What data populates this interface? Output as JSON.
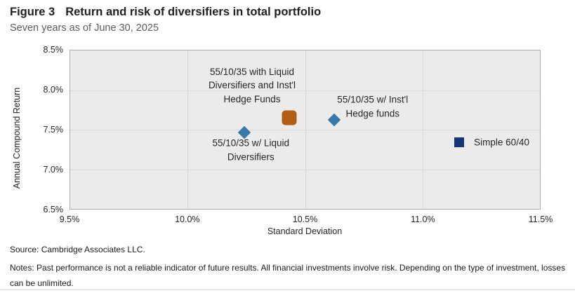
{
  "header": {
    "figure_label": "Figure 3",
    "title": "Return and risk of diversifiers in total portfolio",
    "subtitle": "Seven years as of June 30, 2025"
  },
  "chart_data": {
    "type": "scatter",
    "title": "Return and risk of diversifiers in total portfolio",
    "subtitle": "Seven years as of June 30, 2025",
    "xlabel": "Standard Deviation",
    "ylabel": "Annual Compound Return",
    "xlim": [
      9.5,
      11.5
    ],
    "ylim": [
      6.5,
      8.5
    ],
    "x_ticks": [
      "9.5%",
      "10.0%",
      "10.5%",
      "11.0%",
      "11.5%"
    ],
    "y_ticks": [
      "8.5%",
      "8.0%",
      "7.5%",
      "7.0%",
      "6.5%"
    ],
    "grid": true,
    "legend": "none",
    "plot_background": "#EBEBEB",
    "gridline_color": "#D9D9D9",
    "points": [
      {
        "label": "55/10/35 with Liquid Diversifiers and Inst'l Hedge Funds",
        "label_lines": [
          "55/10/35 with Liquid",
          "Diversifiers and Inst'l",
          "Hedge Funds"
        ],
        "x": 10.43,
        "y": 7.66,
        "marker": "square-rounded",
        "color": "#B25E14"
      },
      {
        "label": "55/10/35 w/ Inst'l Hedge funds",
        "label_lines": [
          "55/10/35 w/ Inst'l",
          "Hedge funds"
        ],
        "x": 10.62,
        "y": 7.63,
        "marker": "diamond",
        "color": "#3579AD"
      },
      {
        "label": "55/10/35 w/ Liquid Diversifiers",
        "label_lines": [
          "55/10/35 w/ Liquid",
          "Diversifiers"
        ],
        "x": 10.24,
        "y": 7.47,
        "marker": "diamond",
        "color": "#3579AD"
      },
      {
        "label": "Simple 60/40",
        "label_lines": [
          "Simple 60/40"
        ],
        "x": 11.15,
        "y": 7.35,
        "marker": "square",
        "color": "#17357A"
      }
    ]
  },
  "footer": {
    "source": "Source: Cambridge Associates LLC.",
    "notes": "Notes: Past performance is not a reliable indicator of future results. All financial investments involve risk. Depending on the type of investment, losses can be unlimited."
  }
}
